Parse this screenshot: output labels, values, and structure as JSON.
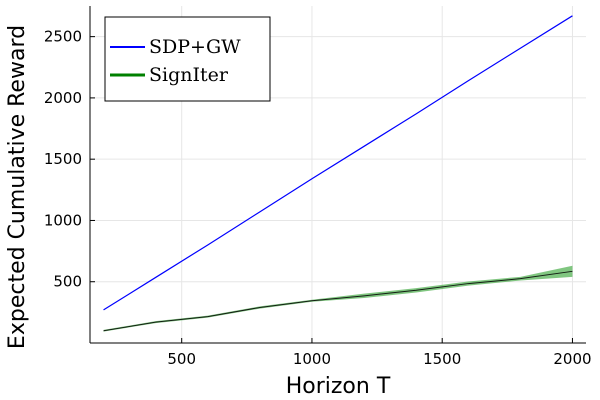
{
  "chart_data": {
    "type": "line",
    "xlabel": "Horizon T",
    "ylabel": "Expected Cumulative Reward",
    "xlim": [
      148,
      2052
    ],
    "ylim": [
      0,
      2750
    ],
    "x_ticks": [
      500,
      1000,
      1500,
      2000
    ],
    "y_ticks": [
      500,
      1000,
      1500,
      2000,
      2500
    ],
    "grid": true,
    "legend_position": "top-left",
    "series": [
      {
        "name": "SDP+GW",
        "color": "#0000ff",
        "x": [
          200,
          400,
          600,
          800,
          1000,
          1200,
          1400,
          1600,
          1800,
          2000
        ],
        "y": [
          270,
          535,
          800,
          1070,
          1340,
          1605,
          1870,
          2140,
          2405,
          2670
        ]
      },
      {
        "name": "SignIter",
        "color": "#008000",
        "band_color": "#2ca02c",
        "x": [
          200,
          400,
          600,
          800,
          1000,
          1200,
          1400,
          1600,
          1800,
          2000
        ],
        "y": [
          100,
          170,
          215,
          290,
          345,
          385,
          430,
          485,
          525,
          585
        ],
        "lower": [
          93,
          162,
          207,
          281,
          337,
          367,
          412,
          468,
          510,
          540
        ],
        "upper": [
          107,
          178,
          223,
          299,
          353,
          403,
          448,
          502,
          540,
          630
        ]
      }
    ]
  }
}
